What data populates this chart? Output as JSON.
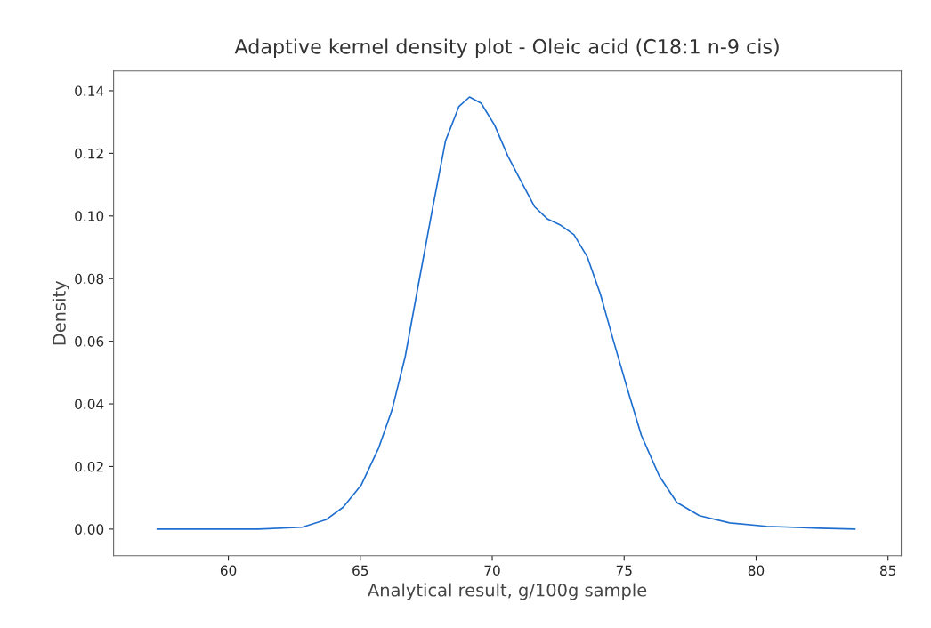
{
  "chart_data": {
    "type": "line",
    "title": "Adaptive kernel density plot - Oleic acid (C18:1 n-9 cis)",
    "xlabel": "Analytical result, g/100g sample",
    "ylabel": "Density",
    "x": [
      57.3,
      61.15,
      62.8,
      63.7,
      64.35,
      65.03,
      65.7,
      66.2,
      66.7,
      67.2,
      67.73,
      68.23,
      68.74,
      69.14,
      69.58,
      70.09,
      70.6,
      71.1,
      71.6,
      72.1,
      72.6,
      73.1,
      73.6,
      74.1,
      74.6,
      75.15,
      75.65,
      76.33,
      77.0,
      77.85,
      79.0,
      80.4,
      82.4,
      83.75
    ],
    "series": [
      {
        "color": "#1f6fd0",
        "values": [
          0.0,
          0.0,
          0.0006,
          0.003,
          0.007,
          0.014,
          0.026,
          0.038,
          0.055,
          0.078,
          0.102,
          0.124,
          0.135,
          0.138,
          0.136,
          0.129,
          0.119,
          0.111,
          0.103,
          0.099,
          0.097,
          0.094,
          0.087,
          0.075,
          0.06,
          0.044,
          0.03,
          0.017,
          0.0085,
          0.0043,
          0.002,
          0.0009,
          0.0003,
          0.0
        ]
      }
    ],
    "xlim": [
      55.65,
      85.5
    ],
    "ylim": [
      -0.0085,
      0.1463
    ],
    "xticks": [
      60,
      65,
      70,
      75,
      80,
      85
    ],
    "yticks": [
      {
        "value": 0,
        "label": "0.00"
      },
      {
        "value": 0.02,
        "label": "0.02"
      },
      {
        "value": 0.04,
        "label": "0.04"
      },
      {
        "value": 0.06,
        "label": "0.06"
      },
      {
        "value": 0.08,
        "label": "0.08"
      },
      {
        "value": 0.1,
        "label": "0.10"
      },
      {
        "value": 0.12,
        "label": "0.12"
      },
      {
        "value": 0.14,
        "label": "0.14"
      }
    ],
    "grid": false,
    "legend": false,
    "line_style": "solid"
  }
}
